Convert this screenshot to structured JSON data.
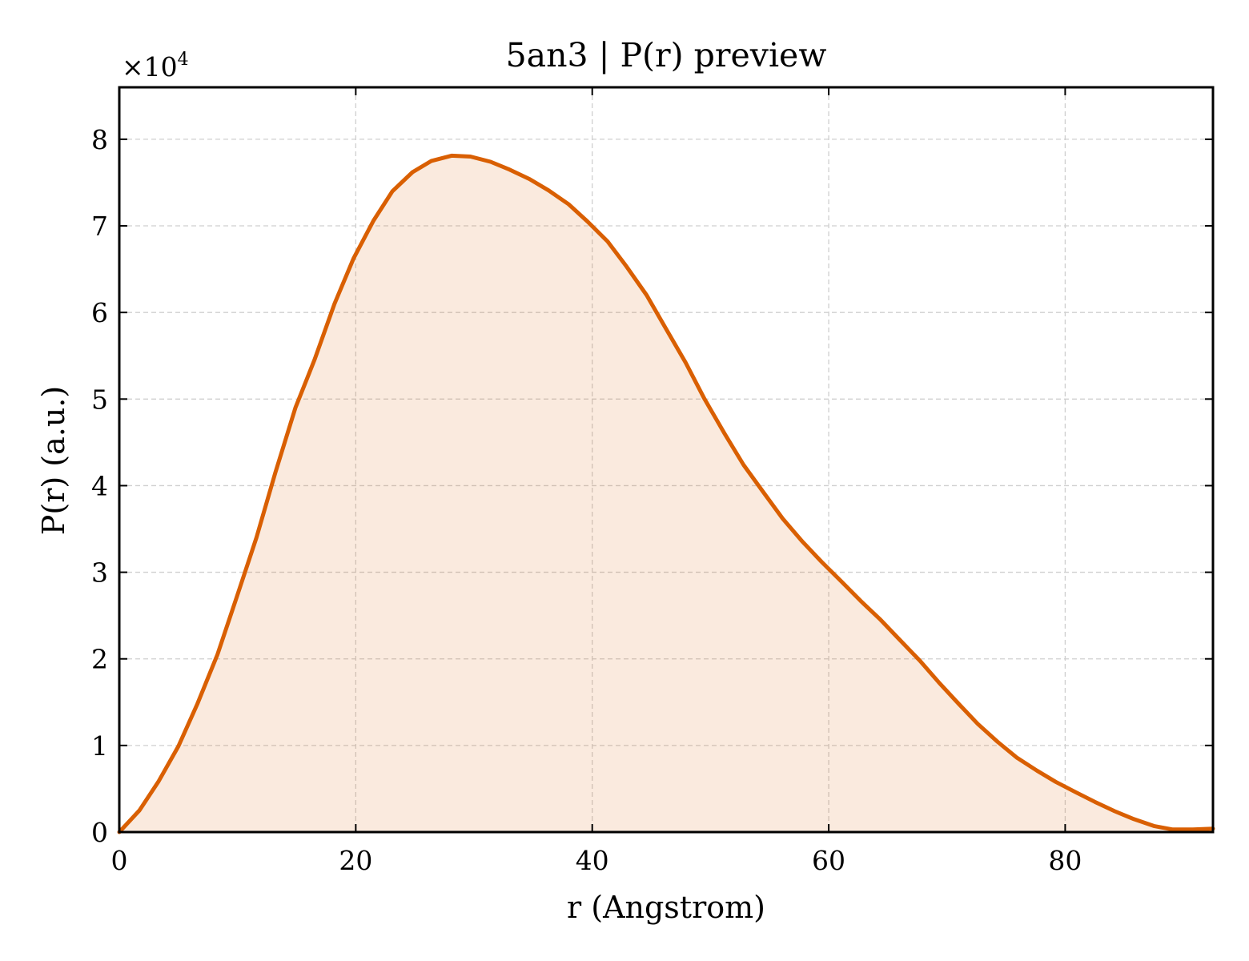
{
  "chart_data": {
    "type": "area",
    "title": "5an3 | P(r) preview",
    "xlabel": "r (Angstrom)",
    "ylabel": "P(r) (a.u.)",
    "y_multiplier_label": "×10",
    "y_multiplier_exponent": "4",
    "xlim": [
      0,
      92.5
    ],
    "ylim": [
      0,
      8.6
    ],
    "y_scale_factor": 10000,
    "xticks": [
      0,
      20,
      40,
      60,
      80
    ],
    "xtick_labels": [
      "0",
      "20",
      "40",
      "60",
      "80"
    ],
    "yticks": [
      0,
      1,
      2,
      3,
      4,
      5,
      6,
      7,
      8
    ],
    "ytick_labels": [
      "0",
      "1",
      "2",
      "3",
      "4",
      "5",
      "6",
      "7",
      "8"
    ],
    "grid": true,
    "legend": "none",
    "line_color": "#d95f02",
    "fill_color": "#d95f02",
    "fill_opacity": 0.13,
    "series": [
      {
        "x": [
          0,
          1.7,
          3.3,
          5.0,
          6.6,
          8.3,
          9.9,
          11.6,
          13.2,
          14.9,
          16.5,
          18.2,
          19.8,
          21.5,
          23.1,
          24.8,
          26.4,
          28.1,
          29.7,
          31.4,
          33.0,
          34.7,
          36.3,
          38.0,
          39.6,
          41.3,
          42.9,
          44.6,
          46.2,
          47.9,
          49.5,
          51.2,
          52.8,
          54.5,
          56.1,
          57.8,
          59.4,
          61.1,
          62.7,
          64.4,
          66.0,
          67.7,
          69.3,
          71.0,
          72.6,
          74.3,
          75.9,
          77.6,
          79.2,
          80.9,
          82.5,
          84.2,
          85.8,
          87.5,
          89.1,
          90.8,
          92.5
        ],
        "y": [
          0.0,
          0.25,
          0.58,
          0.99,
          1.48,
          2.05,
          2.7,
          3.4,
          4.15,
          4.9,
          5.45,
          6.1,
          6.62,
          7.06,
          7.4,
          7.62,
          7.75,
          7.81,
          7.8,
          7.74,
          7.65,
          7.54,
          7.41,
          7.25,
          7.05,
          6.82,
          6.53,
          6.2,
          5.82,
          5.42,
          5.0,
          4.6,
          4.24,
          3.92,
          3.62,
          3.35,
          3.12,
          2.89,
          2.67,
          2.45,
          2.22,
          1.98,
          1.73,
          1.48,
          1.25,
          1.04,
          0.86,
          0.71,
          0.58,
          0.46,
          0.35,
          0.24,
          0.15,
          0.07,
          0.03,
          0.03,
          0.04
        ]
      }
    ]
  }
}
